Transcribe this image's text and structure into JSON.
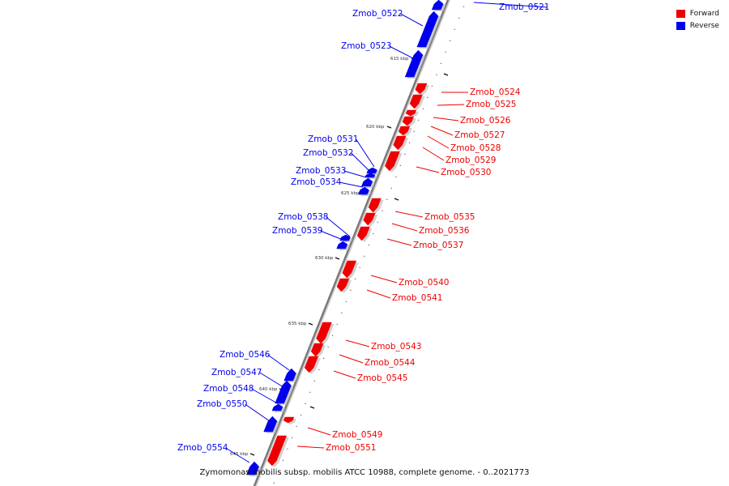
{
  "caption": "Zymomonas mobilis subsp. mobilis ATCC 10988, complete genome. - 0..2021773",
  "legend": [
    {
      "label": "Forward",
      "color": "#ee0000"
    },
    {
      "label": "Reverse",
      "color": "#0000ee"
    }
  ],
  "ticks": [
    "615 kbp",
    "620 kbp",
    "625 kbp",
    "630 kbp",
    "635 kbp",
    "640 kbp",
    "645 kbp"
  ],
  "genes": [
    {
      "name": "Zmob_0521",
      "strand": "reverse"
    },
    {
      "name": "Zmob_0522",
      "strand": "reverse"
    },
    {
      "name": "Zmob_0523",
      "strand": "reverse"
    },
    {
      "name": "Zmob_0524",
      "strand": "forward"
    },
    {
      "name": "Zmob_0525",
      "strand": "forward"
    },
    {
      "name": "Zmob_0526",
      "strand": "forward"
    },
    {
      "name": "Zmob_0527",
      "strand": "forward"
    },
    {
      "name": "Zmob_0528",
      "strand": "forward"
    },
    {
      "name": "Zmob_0529",
      "strand": "forward"
    },
    {
      "name": "Zmob_0530",
      "strand": "forward"
    },
    {
      "name": "Zmob_0531",
      "strand": "reverse"
    },
    {
      "name": "Zmob_0532",
      "strand": "reverse"
    },
    {
      "name": "Zmob_0533",
      "strand": "reverse"
    },
    {
      "name": "Zmob_0534",
      "strand": "reverse"
    },
    {
      "name": "Zmob_0535",
      "strand": "forward"
    },
    {
      "name": "Zmob_0536",
      "strand": "forward"
    },
    {
      "name": "Zmob_0537",
      "strand": "forward"
    },
    {
      "name": "Zmob_0538",
      "strand": "reverse"
    },
    {
      "name": "Zmob_0539",
      "strand": "reverse"
    },
    {
      "name": "Zmob_0540",
      "strand": "forward"
    },
    {
      "name": "Zmob_0541",
      "strand": "forward"
    },
    {
      "name": "Zmob_0543",
      "strand": "forward"
    },
    {
      "name": "Zmob_0544",
      "strand": "forward"
    },
    {
      "name": "Zmob_0545",
      "strand": "forward"
    },
    {
      "name": "Zmob_0546",
      "strand": "reverse"
    },
    {
      "name": "Zmob_0547",
      "strand": "reverse"
    },
    {
      "name": "Zmob_0548",
      "strand": "reverse"
    },
    {
      "name": "Zmob_0549",
      "strand": "forward"
    },
    {
      "name": "Zmob_0550",
      "strand": "reverse"
    },
    {
      "name": "Zmob_0551",
      "strand": "forward"
    },
    {
      "name": "Zmob_0554",
      "strand": "reverse"
    }
  ]
}
